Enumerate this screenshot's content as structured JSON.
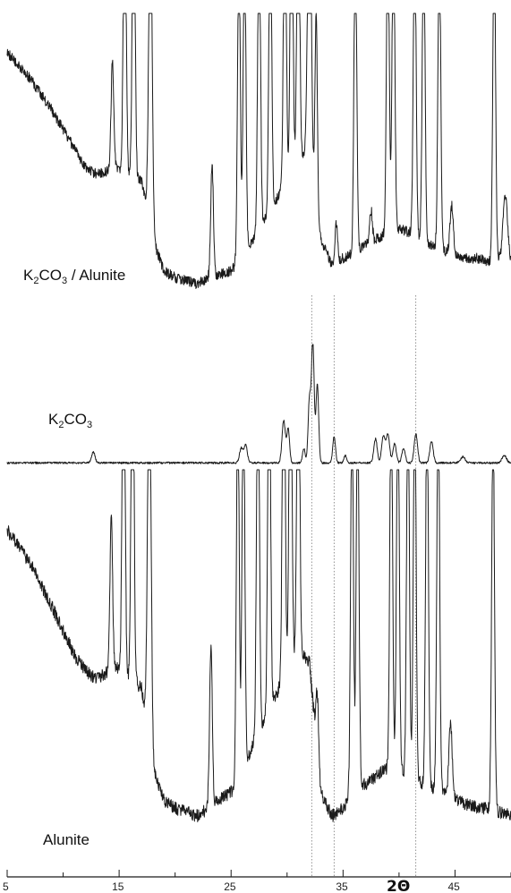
{
  "chart_data": {
    "type": "line",
    "title": "",
    "xlabel": "2Θ",
    "ylabel": "",
    "xlim": [
      5,
      50
    ],
    "x_ticks": [
      5,
      15,
      25,
      35,
      45
    ],
    "x_tick_labels": [
      "5",
      "15",
      "25",
      "35",
      "45"
    ],
    "grid": false,
    "legend": "none",
    "reference_lines_x": [
      32.2,
      34.2,
      41.5
    ],
    "series": [
      {
        "name": "K2CO3 / Alunite",
        "label_main": "K",
        "label_sub1": "2",
        "label_mid": "CO",
        "label_sub2": "3",
        "label_tail": " / Alunite",
        "baseline": [
          [
            5,
            88
          ],
          [
            7,
            80
          ],
          [
            9,
            70
          ],
          [
            11,
            58
          ],
          [
            12,
            52
          ],
          [
            13,
            50
          ],
          [
            14,
            51
          ],
          [
            15,
            52
          ],
          [
            16,
            50
          ],
          [
            17,
            48
          ],
          [
            18,
            30
          ],
          [
            19,
            20
          ],
          [
            20,
            18
          ],
          [
            21,
            17
          ],
          [
            22,
            16
          ],
          [
            23,
            18
          ],
          [
            24,
            19
          ],
          [
            25,
            20
          ],
          [
            26,
            25
          ],
          [
            27,
            30
          ],
          [
            28,
            36
          ],
          [
            29,
            42
          ],
          [
            30,
            48
          ],
          [
            31,
            55
          ],
          [
            32,
            58
          ],
          [
            33,
            30
          ],
          [
            34,
            22
          ],
          [
            35,
            24
          ],
          [
            36,
            26
          ],
          [
            37,
            28
          ],
          [
            38,
            30
          ],
          [
            39,
            32
          ],
          [
            40,
            33
          ],
          [
            41,
            32
          ],
          [
            42,
            30
          ],
          [
            43,
            28
          ],
          [
            44,
            26
          ],
          [
            45,
            25
          ],
          [
            46,
            24
          ],
          [
            47,
            24
          ],
          [
            48,
            23
          ],
          [
            49,
            24
          ],
          [
            50,
            23
          ]
        ],
        "peaks": [
          [
            14.4,
            34,
            0.12
          ],
          [
            15.5,
            100,
            0.12
          ],
          [
            16.3,
            100,
            0.12
          ],
          [
            17.8,
            100,
            0.15
          ],
          [
            23.3,
            35,
            0.12
          ],
          [
            25.7,
            100,
            0.12
          ],
          [
            26.2,
            100,
            0.12
          ],
          [
            27.5,
            100,
            0.12
          ],
          [
            28.5,
            100,
            0.12
          ],
          [
            29.8,
            100,
            0.12
          ],
          [
            30.4,
            100,
            0.12
          ],
          [
            31.0,
            100,
            0.12
          ],
          [
            32.0,
            100,
            0.15
          ],
          [
            32.6,
            60,
            0.1
          ],
          [
            34.4,
            12,
            0.12
          ],
          [
            36.1,
            100,
            0.12
          ],
          [
            37.5,
            10,
            0.12
          ],
          [
            39.0,
            100,
            0.12
          ],
          [
            39.5,
            100,
            0.12
          ],
          [
            41.4,
            100,
            0.12
          ],
          [
            42.2,
            100,
            0.12
          ],
          [
            43.6,
            100,
            0.12
          ],
          [
            44.7,
            15,
            0.15
          ],
          [
            48.5,
            100,
            0.12
          ],
          [
            49.5,
            20,
            0.2
          ]
        ]
      },
      {
        "name": "K2CO3",
        "label_main": "K",
        "label_sub1": "2",
        "label_mid": "CO",
        "label_sub2": "3",
        "label_tail": "",
        "baseline": [
          [
            5,
            2
          ],
          [
            10,
            2
          ],
          [
            15,
            2
          ],
          [
            20,
            2
          ],
          [
            25,
            2
          ],
          [
            30,
            2
          ],
          [
            35,
            2
          ],
          [
            40,
            2
          ],
          [
            45,
            2
          ],
          [
            50,
            2
          ]
        ],
        "peaks": [
          [
            12.7,
            9,
            0.15
          ],
          [
            25.9,
            12,
            0.15
          ],
          [
            26.3,
            15,
            0.15
          ],
          [
            29.7,
            35,
            0.15
          ],
          [
            30.1,
            28,
            0.12
          ],
          [
            31.5,
            12,
            0.12
          ],
          [
            32.0,
            52,
            0.12
          ],
          [
            32.3,
            100,
            0.12
          ],
          [
            32.7,
            65,
            0.12
          ],
          [
            34.2,
            22,
            0.12
          ],
          [
            35.2,
            6,
            0.12
          ],
          [
            37.9,
            20,
            0.15
          ],
          [
            38.6,
            22,
            0.15
          ],
          [
            39.0,
            24,
            0.15
          ],
          [
            39.6,
            16,
            0.15
          ],
          [
            40.4,
            12,
            0.15
          ],
          [
            41.5,
            24,
            0.15
          ],
          [
            42.9,
            18,
            0.15
          ],
          [
            45.7,
            5,
            0.2
          ],
          [
            49.4,
            6,
            0.2
          ]
        ]
      },
      {
        "name": "Alunite",
        "label_main": "Alunite",
        "label_sub1": "",
        "label_mid": "",
        "label_sub2": "",
        "label_tail": "",
        "baseline": [
          [
            5,
            85
          ],
          [
            7,
            77
          ],
          [
            9,
            66
          ],
          [
            11,
            54
          ],
          [
            12,
            50
          ],
          [
            13,
            48
          ],
          [
            14,
            50
          ],
          [
            15,
            51
          ],
          [
            16,
            48
          ],
          [
            17,
            46
          ],
          [
            18,
            26
          ],
          [
            19,
            18
          ],
          [
            20,
            16
          ],
          [
            21,
            15
          ],
          [
            22,
            14
          ],
          [
            23,
            16
          ],
          [
            24,
            18
          ],
          [
            25,
            20
          ],
          [
            26,
            25
          ],
          [
            27,
            32
          ],
          [
            28,
            38
          ],
          [
            29,
            44
          ],
          [
            30,
            50
          ],
          [
            31,
            55
          ],
          [
            32,
            52
          ],
          [
            33,
            20
          ],
          [
            34,
            14
          ],
          [
            35,
            16
          ],
          [
            36,
            20
          ],
          [
            37,
            22
          ],
          [
            38,
            24
          ],
          [
            39,
            26
          ],
          [
            40,
            25
          ],
          [
            41,
            24
          ],
          [
            42,
            22
          ],
          [
            43,
            21
          ],
          [
            44,
            20
          ],
          [
            45,
            18
          ],
          [
            46,
            17
          ],
          [
            47,
            16
          ],
          [
            48,
            16
          ],
          [
            49,
            15
          ],
          [
            50,
            14
          ]
        ],
        "peaks": [
          [
            14.3,
            38,
            0.12
          ],
          [
            15.4,
            100,
            0.12
          ],
          [
            16.2,
            100,
            0.12
          ],
          [
            17.7,
            100,
            0.15
          ],
          [
            23.2,
            40,
            0.12
          ],
          [
            25.6,
            100,
            0.12
          ],
          [
            26.1,
            100,
            0.12
          ],
          [
            27.4,
            100,
            0.12
          ],
          [
            28.4,
            100,
            0.12
          ],
          [
            29.7,
            100,
            0.12
          ],
          [
            30.3,
            100,
            0.12
          ],
          [
            31.0,
            100,
            0.12
          ],
          [
            32.7,
            15,
            0.12
          ],
          [
            35.8,
            100,
            0.12
          ],
          [
            36.3,
            100,
            0.12
          ],
          [
            39.3,
            100,
            0.12
          ],
          [
            39.9,
            100,
            0.12
          ],
          [
            40.8,
            100,
            0.12
          ],
          [
            41.4,
            100,
            0.12
          ],
          [
            42.5,
            100,
            0.12
          ],
          [
            43.5,
            100,
            0.12
          ],
          [
            44.6,
            18,
            0.15
          ],
          [
            48.4,
            100,
            0.12
          ]
        ]
      }
    ]
  }
}
